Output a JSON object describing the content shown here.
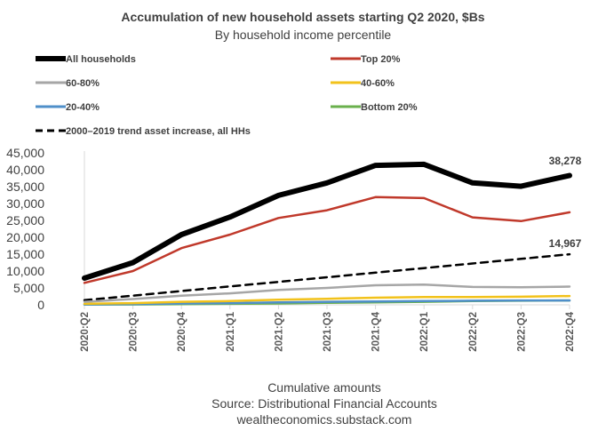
{
  "chart_data": {
    "type": "line",
    "title": "Accumulation of new household assets starting Q2 2020, $Bs",
    "subtitle": "By household income percentile",
    "categories": [
      "2020:Q2",
      "2020:Q3",
      "2020:Q4",
      "2021:Q1",
      "2021:Q2",
      "2021:Q3",
      "2021:Q4",
      "2022:Q1",
      "2022:Q2",
      "2022:Q3",
      "2022:Q4"
    ],
    "ylim": [
      0,
      45000
    ],
    "yticks": [
      "0",
      "5,000",
      "10,000",
      "15,000",
      "20,000",
      "25,000",
      "30,000",
      "35,000",
      "40,000",
      "45,000"
    ],
    "ytick_values": [
      0,
      5000,
      10000,
      15000,
      20000,
      25000,
      30000,
      35000,
      40000,
      45000
    ],
    "series": [
      {
        "name": "All households",
        "color": "#000000",
        "dash": false,
        "values": [
          7900,
          12500,
          20800,
          26000,
          32400,
          36100,
          41300,
          41600,
          36100,
          35100,
          38278
        ]
      },
      {
        "name": "Top 20%",
        "color": "#c0392b",
        "dash": false,
        "values": [
          6500,
          10000,
          16800,
          20800,
          25700,
          28000,
          31900,
          31600,
          25900,
          24800,
          27400
        ]
      },
      {
        "name": "60-80%",
        "color": "#a6a6a6",
        "dash": false,
        "values": [
          900,
          1700,
          2700,
          3400,
          4400,
          5000,
          5800,
          6000,
          5300,
          5200,
          5400
        ]
      },
      {
        "name": "40-60%",
        "color": "#f2c21b",
        "dash": false,
        "values": [
          300,
          500,
          900,
          1100,
          1500,
          1800,
          2100,
          2300,
          2300,
          2400,
          2600
        ]
      },
      {
        "name": "20-40%",
        "color": "#4f8fc9",
        "dash": false,
        "values": [
          100,
          200,
          400,
          500,
          700,
          900,
          1000,
          1100,
          1200,
          1300,
          1300
        ]
      },
      {
        "name": "Bottom 20%",
        "color": "#6ab04c",
        "dash": false,
        "values": [
          50,
          100,
          200,
          300,
          400,
          600,
          700,
          900,
          1100,
          1200,
          1300
        ]
      },
      {
        "name": "2000–2019 trend asset increase, all HHs",
        "color": "#000000",
        "dash": true,
        "values": [
          1360,
          2720,
          4080,
          5440,
          6800,
          8160,
          9520,
          10880,
          12240,
          13600,
          14967
        ]
      }
    ],
    "annotations": [
      "38,278",
      "14,967"
    ],
    "legend": "top, three rows in two columns",
    "footer": [
      "Cumulative amounts",
      "Source: Distributional Financial Accounts",
      "wealtheconomics.substack.com"
    ],
    "grid": false
  }
}
